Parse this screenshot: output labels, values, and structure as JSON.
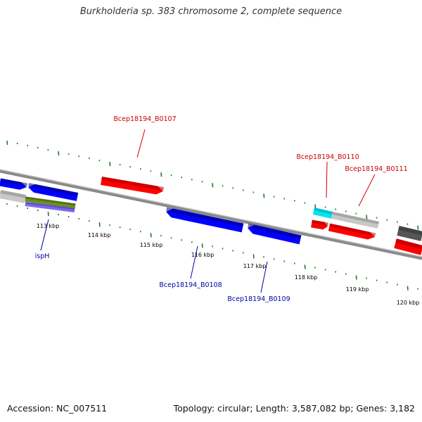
{
  "title": "Burkholderia sp. 383 chromosome 2, complete sequence",
  "footer": {
    "accession": "Accession: NC_007511",
    "summary": "Topology: circular; Length: 3,587,082 bp; Genes: 3,182"
  },
  "colors": {
    "backbone": "#8a8a8a",
    "ticks": "#1a7f1a",
    "forward_gene": "#ff0000",
    "reverse_gene": "#0000ff",
    "label_forward": "#cc0000",
    "label_reverse": "#0000aa",
    "cyan": "#00e5ee",
    "gray_light": "#c8c8c8",
    "gray_dark": "#555555",
    "olive": "#6b8e23",
    "violet": "#7b68ee"
  },
  "ruler_labels": [
    {
      "text": "113 kbp",
      "value": 113
    },
    {
      "text": "114 kbp",
      "value": 114
    },
    {
      "text": "115 kbp",
      "value": 115
    },
    {
      "text": "116 kbp",
      "value": 116
    },
    {
      "text": "117 kbp",
      "value": 117
    },
    {
      "text": "118 kbp",
      "value": 118
    },
    {
      "text": "119 kbp",
      "value": 119
    },
    {
      "text": "120 kbp",
      "value": 120
    }
  ],
  "gene_labels": [
    {
      "text": "Bcep18194_B0107",
      "strand": "forward"
    },
    {
      "text": "Bcep18194_B0110",
      "strand": "forward"
    },
    {
      "text": "Bcep18194_B0111",
      "strand": "forward"
    },
    {
      "text": "ispH",
      "strand": "reverse"
    },
    {
      "text": "Bcep18194_B0108",
      "strand": "reverse"
    },
    {
      "text": "Bcep18194_B0109",
      "strand": "reverse"
    }
  ]
}
